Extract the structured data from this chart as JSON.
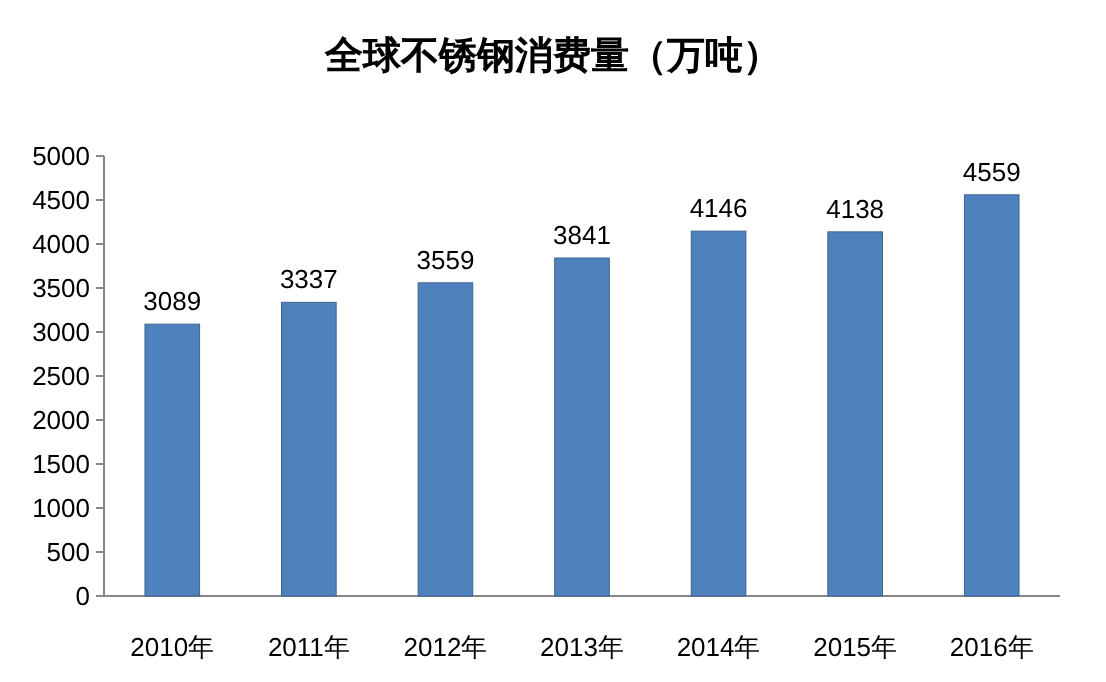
{
  "chart_data": {
    "type": "bar",
    "title": "全球不锈钢消费量（万吨）",
    "categories": [
      "2010年",
      "2011年",
      "2012年",
      "2013年",
      "2014年",
      "2015年",
      "2016年"
    ],
    "values": [
      3089,
      3337,
      3559,
      3841,
      4146,
      4138,
      4559
    ],
    "color": "#4f81bd",
    "ylim": [
      0,
      5000
    ],
    "yticks": [
      0,
      500,
      1000,
      1500,
      2000,
      2500,
      3000,
      3500,
      4000,
      4500,
      5000
    ],
    "data_labels": true
  }
}
